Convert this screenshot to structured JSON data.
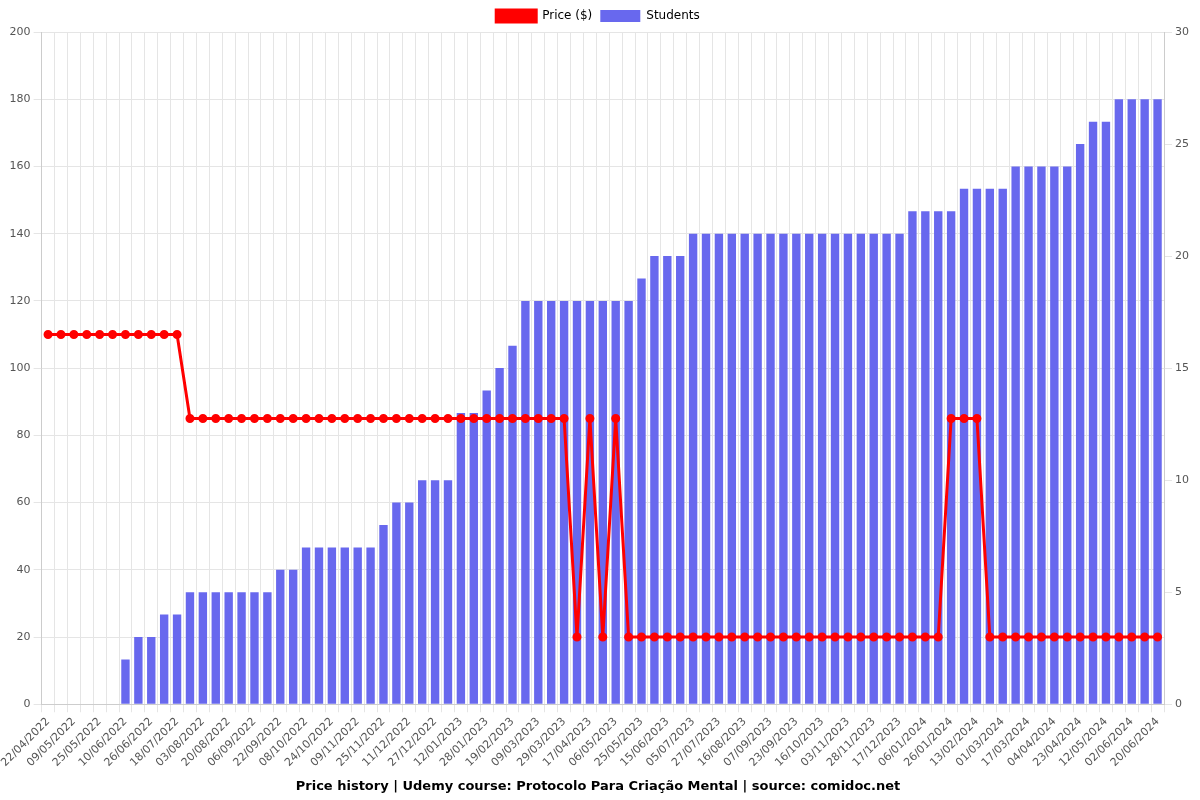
{
  "chart_data": {
    "type": "bar",
    "title": "Price history | Udemy course: Protocolo Para Criação Mental | source: comidoc.net",
    "categories": [
      "22/04/2022",
      null,
      "09/05/2022",
      null,
      "25/05/2022",
      null,
      "10/06/2022",
      null,
      "26/06/2022",
      null,
      "18/07/2022",
      null,
      "03/08/2022",
      null,
      "20/08/2022",
      null,
      "06/09/2022",
      null,
      "22/09/2022",
      null,
      "08/10/2022",
      null,
      "24/10/2022",
      null,
      "09/11/2022",
      null,
      "25/11/2022",
      null,
      "11/12/2022",
      null,
      "27/12/2022",
      null,
      "12/01/2023",
      null,
      "28/01/2023",
      null,
      "19/02/2023",
      null,
      "09/03/2023",
      null,
      "29/03/2023",
      null,
      "17/04/2023",
      null,
      "06/05/2023",
      null,
      "25/05/2023",
      null,
      "15/06/2023",
      null,
      "05/07/2023",
      null,
      "27/07/2023",
      null,
      "16/08/2023",
      null,
      "07/09/2023",
      null,
      "23/09/2023",
      null,
      "16/10/2023",
      null,
      "03/11/2023",
      null,
      "28/11/2023",
      null,
      "17/12/2023",
      null,
      "06/01/2024",
      null,
      "26/01/2024",
      null,
      "13/02/2024",
      null,
      "01/03/2024",
      null,
      "17/03/2024",
      null,
      "04/04/2024",
      null,
      "23/04/2024",
      null,
      "12/05/2024",
      null,
      "02/06/2024",
      null,
      "20/06/2024"
    ],
    "series": [
      {
        "name": "Price ($)",
        "type": "line",
        "color": "#ff0000",
        "marker": "circle",
        "line_style": "solid",
        "values": [
          110,
          110,
          110,
          110,
          110,
          110,
          110,
          110,
          110,
          110,
          110,
          85,
          85,
          85,
          85,
          85,
          85,
          85,
          85,
          85,
          85,
          85,
          85,
          85,
          85,
          85,
          85,
          85,
          85,
          85,
          85,
          85,
          85,
          85,
          85,
          85,
          85,
          85,
          85,
          85,
          85,
          20,
          85,
          20,
          85,
          20,
          20,
          20,
          20,
          20,
          20,
          20,
          20,
          20,
          20,
          20,
          20,
          20,
          20,
          20,
          20,
          20,
          20,
          20,
          20,
          20,
          20,
          20,
          20,
          20,
          85,
          85,
          85,
          20,
          20,
          20,
          20,
          20,
          20,
          20,
          20,
          20,
          20,
          20,
          20,
          20,
          20
        ]
      },
      {
        "name": "Students",
        "type": "bar",
        "color": "#6868ee",
        "axis": "y2",
        "values": [
          0,
          0,
          0,
          0,
          0,
          0,
          2,
          3,
          3,
          4,
          4,
          5,
          5,
          5,
          5,
          5,
          5,
          5,
          6,
          6,
          7,
          7,
          7,
          7,
          7,
          7,
          8,
          9,
          9,
          10,
          10,
          10,
          13,
          13,
          14,
          15,
          16,
          18,
          18,
          18,
          18,
          18,
          18,
          18,
          18,
          18,
          19,
          20,
          20,
          20,
          21,
          21,
          21,
          21,
          21,
          21,
          21,
          21,
          21,
          21,
          21,
          21,
          21,
          21,
          21,
          21,
          21,
          22,
          22,
          22,
          22,
          23,
          23,
          23,
          23,
          24,
          24,
          24,
          24,
          24,
          25,
          26,
          26,
          27,
          27,
          27,
          27
        ]
      }
    ],
    "ylim": [
      0,
      200
    ],
    "yticks": [
      0,
      20,
      40,
      60,
      80,
      100,
      120,
      140,
      160,
      180,
      200
    ],
    "y2lim": [
      0,
      30
    ],
    "y2ticks": [
      0,
      5,
      10,
      15,
      20,
      25,
      30
    ],
    "grid": true,
    "legend": "top"
  }
}
